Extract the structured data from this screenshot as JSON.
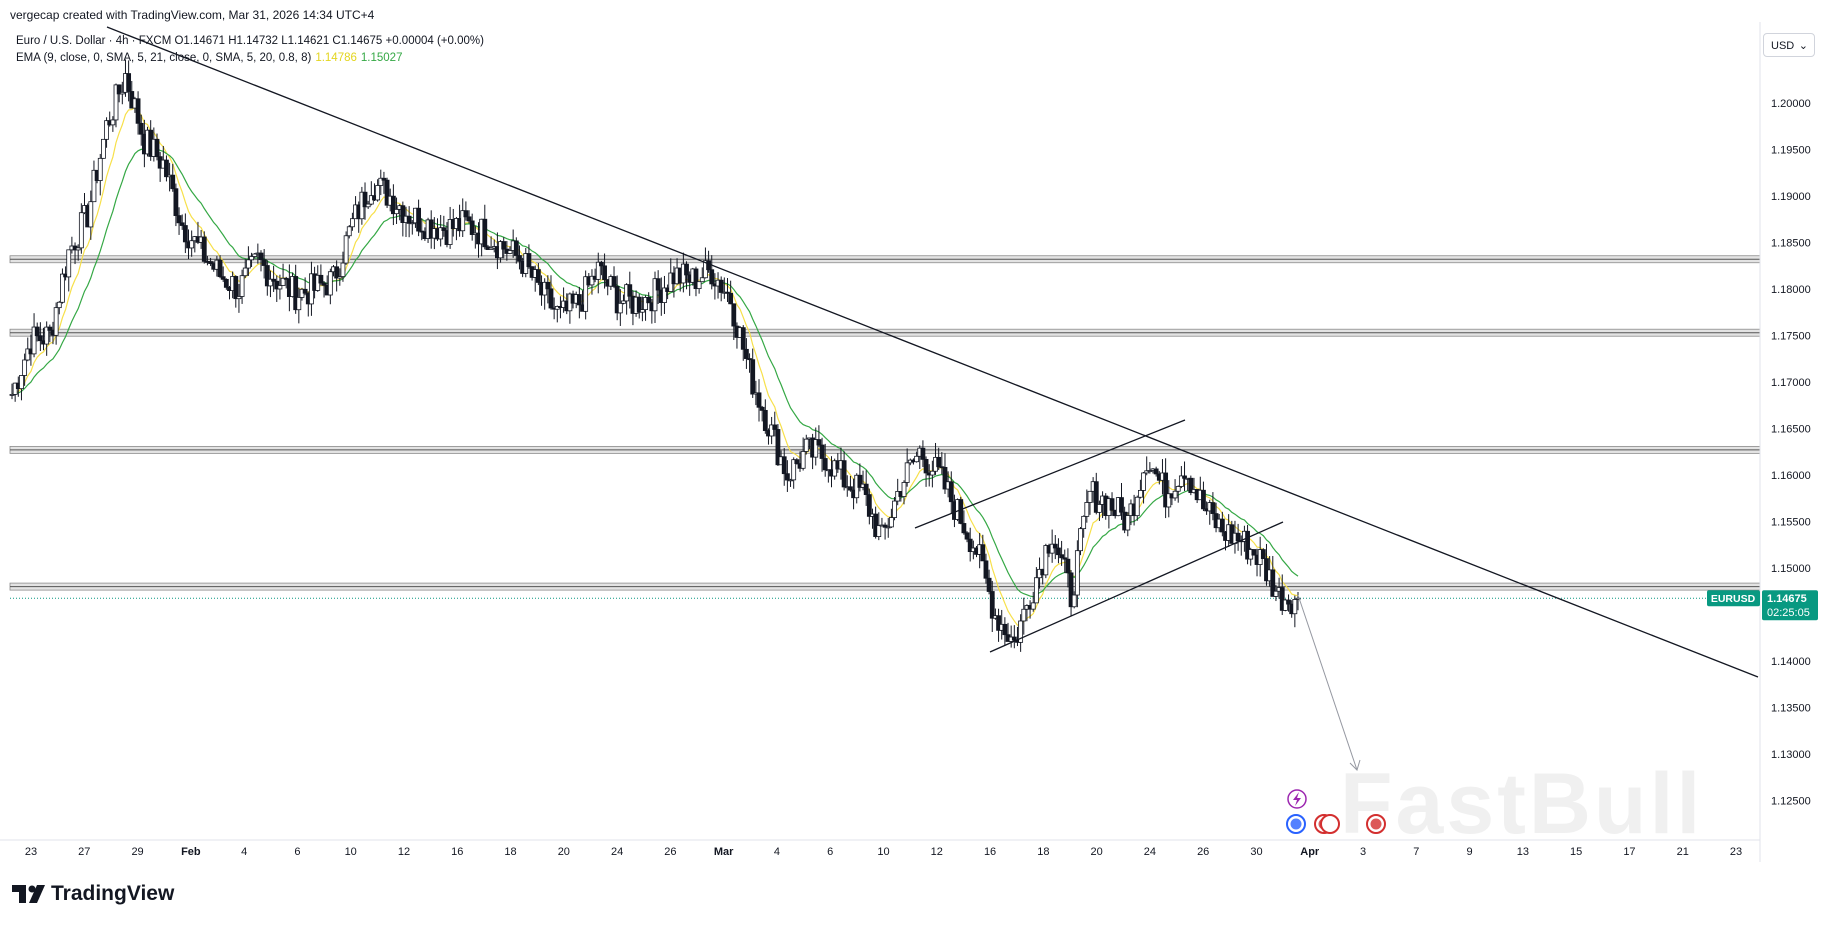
{
  "header": {
    "credit": "vergecap created with TradingView.com, Mar 31, 2026 14:34 UTC+4",
    "symbol_line": "Euro / U.S. Dollar · 4h · FXCM  O1.14671  H1.14732  L1.14621  C1.14675  +0.00004 (+0.00%)",
    "indicator_label": "EMA (9, close, 0, SMA, 5, 21, close, 0, SMA, 5, 20, 0.8, 8)",
    "indicator_value_1": "1.14786",
    "indicator_value_2": "1.15027"
  },
  "currency_button": {
    "label": "USD"
  },
  "logo": {
    "text": "TradingView"
  },
  "watermark": {
    "text": "FastBull"
  },
  "price_tag": {
    "symbol": "EURUSD",
    "price": "1.14675",
    "countdown": "02:25:05"
  },
  "colors": {
    "up": "#089981",
    "down": "#f23645",
    "candle": "#131722",
    "ema_fast": "#f7e04a",
    "ema_slow": "#35a845",
    "last_price": "#089981",
    "trendline": "#131722",
    "projection": "#9598a1",
    "zone": "#c7c7c7"
  },
  "chart_data": {
    "type": "candlestick",
    "symbol": "EURUSD",
    "timeframe": "4h",
    "y_ticks": [
      "1.20000",
      "1.19500",
      "1.19000",
      "1.18500",
      "1.18000",
      "1.17500",
      "1.17000",
      "1.16500",
      "1.16000",
      "1.15500",
      "1.15000",
      "1.14000",
      "1.13500",
      "1.13000",
      "1.12500"
    ],
    "ylim": [
      1.121,
      1.2065
    ],
    "x_ticks": [
      "23",
      "27",
      "29",
      "Feb",
      "4",
      "6",
      "10",
      "12",
      "16",
      "18",
      "20",
      "24",
      "26",
      "Mar",
      "4",
      "6",
      "10",
      "12",
      "16",
      "18",
      "20",
      "24",
      "26",
      "30",
      "Apr",
      "3",
      "7",
      "9",
      "13",
      "15",
      "17",
      "21",
      "23"
    ],
    "price_path": [
      {
        "date": "Jan 22",
        "close": 1.1687
      },
      {
        "date": "Jan 23",
        "close": 1.1745
      },
      {
        "date": "Jan 24",
        "close": 1.175
      },
      {
        "date": "Jan 25",
        "close": 1.184
      },
      {
        "date": "Jan 26",
        "close": 1.188
      },
      {
        "date": "Jan 27",
        "close": 1.1975
      },
      {
        "date": "Jan 28",
        "close": 1.203
      },
      {
        "date": "Jan 29",
        "close": 1.196
      },
      {
        "date": "Jan 30",
        "close": 1.1935
      },
      {
        "date": "Jan 31",
        "close": 1.187
      },
      {
        "date": "Feb 1",
        "close": 1.184
      },
      {
        "date": "Feb 2",
        "close": 1.1815
      },
      {
        "date": "Feb 3",
        "close": 1.18
      },
      {
        "date": "Feb 4",
        "close": 1.183
      },
      {
        "date": "Feb 5",
        "close": 1.181
      },
      {
        "date": "Feb 6",
        "close": 1.1795
      },
      {
        "date": "Feb 7",
        "close": 1.18
      },
      {
        "date": "Feb 8",
        "close": 1.181
      },
      {
        "date": "Feb 9",
        "close": 1.187
      },
      {
        "date": "Feb 10",
        "close": 1.1915
      },
      {
        "date": "Feb 11",
        "close": 1.19
      },
      {
        "date": "Feb 12",
        "close": 1.188
      },
      {
        "date": "Feb 13",
        "close": 1.187
      },
      {
        "date": "Feb 14",
        "close": 1.1865
      },
      {
        "date": "Feb 15",
        "close": 1.187
      },
      {
        "date": "Feb 16",
        "close": 1.186
      },
      {
        "date": "Feb 17",
        "close": 1.1845
      },
      {
        "date": "Feb 18",
        "close": 1.183
      },
      {
        "date": "Feb 19",
        "close": 1.1795
      },
      {
        "date": "Feb 20",
        "close": 1.177
      },
      {
        "date": "Feb 21",
        "close": 1.1785
      },
      {
        "date": "Feb 22",
        "close": 1.182
      },
      {
        "date": "Feb 23",
        "close": 1.179
      },
      {
        "date": "Feb 24",
        "close": 1.1785
      },
      {
        "date": "Feb 25",
        "close": 1.1795
      },
      {
        "date": "Feb 26",
        "close": 1.1815
      },
      {
        "date": "Feb 27",
        "close": 1.181
      },
      {
        "date": "Feb 28",
        "close": 1.182
      },
      {
        "date": "Mar 1",
        "close": 1.179
      },
      {
        "date": "Mar 2",
        "close": 1.171
      },
      {
        "date": "Mar 3",
        "close": 1.1655
      },
      {
        "date": "Mar 4",
        "close": 1.16
      },
      {
        "date": "Mar 5",
        "close": 1.1625
      },
      {
        "date": "Mar 6",
        "close": 1.162
      },
      {
        "date": "Mar 7",
        "close": 1.1595
      },
      {
        "date": "Mar 8",
        "close": 1.158
      },
      {
        "date": "Mar 9",
        "close": 1.153
      },
      {
        "date": "Mar 10",
        "close": 1.159
      },
      {
        "date": "Mar 11",
        "close": 1.1625
      },
      {
        "date": "Mar 12",
        "close": 1.16
      },
      {
        "date": "Mar 13",
        "close": 1.156
      },
      {
        "date": "Mar 14",
        "close": 1.152
      },
      {
        "date": "Mar 15",
        "close": 1.145
      },
      {
        "date": "Mar 16",
        "close": 1.142
      },
      {
        "date": "Mar 17",
        "close": 1.148
      },
      {
        "date": "Mar 18",
        "close": 1.154
      },
      {
        "date": "Mar 19",
        "close": 1.147
      },
      {
        "date": "Mar 20",
        "close": 1.158
      },
      {
        "date": "Mar 21",
        "close": 1.157
      },
      {
        "date": "Mar 22",
        "close": 1.155
      },
      {
        "date": "Mar 23",
        "close": 1.162
      },
      {
        "date": "Mar 24",
        "close": 1.158
      },
      {
        "date": "Mar 25",
        "close": 1.161
      },
      {
        "date": "Mar 26",
        "close": 1.1565
      },
      {
        "date": "Mar 27",
        "close": 1.154
      },
      {
        "date": "Mar 28",
        "close": 1.153
      },
      {
        "date": "Mar 29",
        "close": 1.151
      },
      {
        "date": "Mar 30",
        "close": 1.147
      },
      {
        "date": "Mar 31",
        "close": 1.14675
      }
    ],
    "horizontal_zones": [
      1.1832,
      1.1753,
      1.1627,
      1.148
    ],
    "last_price": 1.14675
  }
}
